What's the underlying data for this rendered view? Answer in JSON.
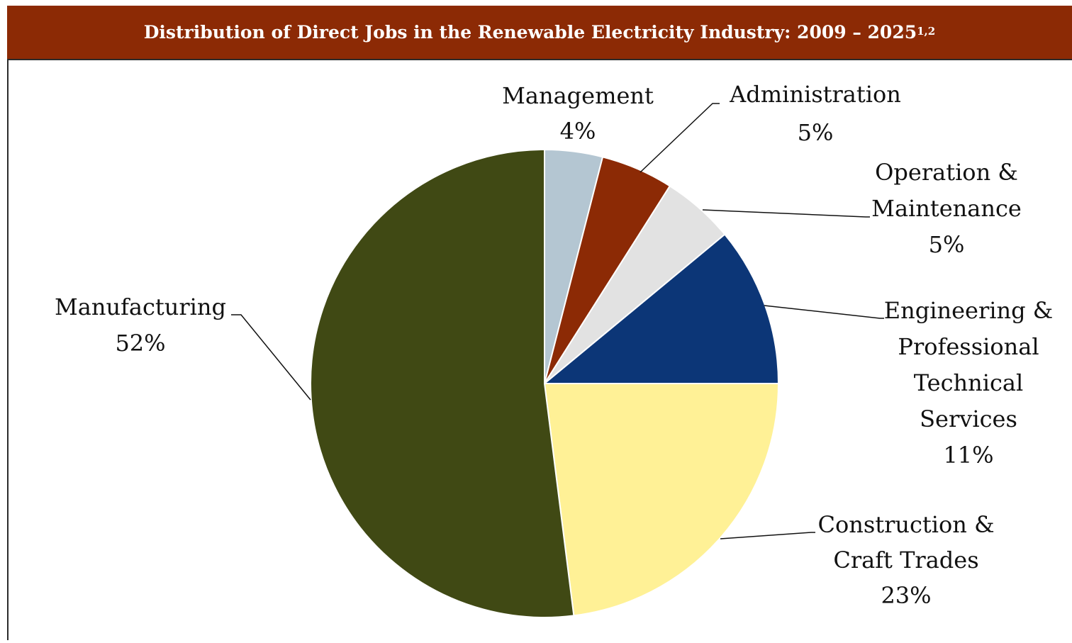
{
  "title": {
    "main": "Distribution of Direct Jobs in the Renewable Electricity Industry: 2009 – 2025",
    "superscript": "1,2"
  },
  "colors": {
    "title_bg": "#8c2a05",
    "management": "#b4c6d2",
    "administration": "#8c2a05",
    "operation_maintenance": "#e2e2e2",
    "engineering": "#0c3677",
    "construction": "#fff196",
    "manufacturing": "#404914"
  },
  "chart_data": {
    "type": "pie",
    "title": "Distribution of Direct Jobs in the Renewable Electricity Industry: 2009 – 2025",
    "start": "12 o'clock",
    "direction": "clockwise",
    "legend": "none (data labels with leader lines)",
    "slices": [
      {
        "label_lines": [
          "Management"
        ],
        "value": 4,
        "value_label": "4%",
        "color": "#b4c6d2"
      },
      {
        "label_lines": [
          "Administration"
        ],
        "value": 5,
        "value_label": "5%",
        "color": "#8c2a05"
      },
      {
        "label_lines": [
          "Operation &",
          "Maintenance"
        ],
        "value": 5,
        "value_label": "5%",
        "color": "#e2e2e2"
      },
      {
        "label_lines": [
          "Engineering &",
          "Professional",
          "Technical",
          "Services"
        ],
        "value": 11,
        "value_label": "11%",
        "color": "#0c3677"
      },
      {
        "label_lines": [
          "Construction &",
          "Craft Trades"
        ],
        "value": 23,
        "value_label": "23%",
        "color": "#fff196"
      },
      {
        "label_lines": [
          "Manufacturing"
        ],
        "value": 52,
        "value_label": "52%",
        "color": "#404914"
      }
    ]
  }
}
